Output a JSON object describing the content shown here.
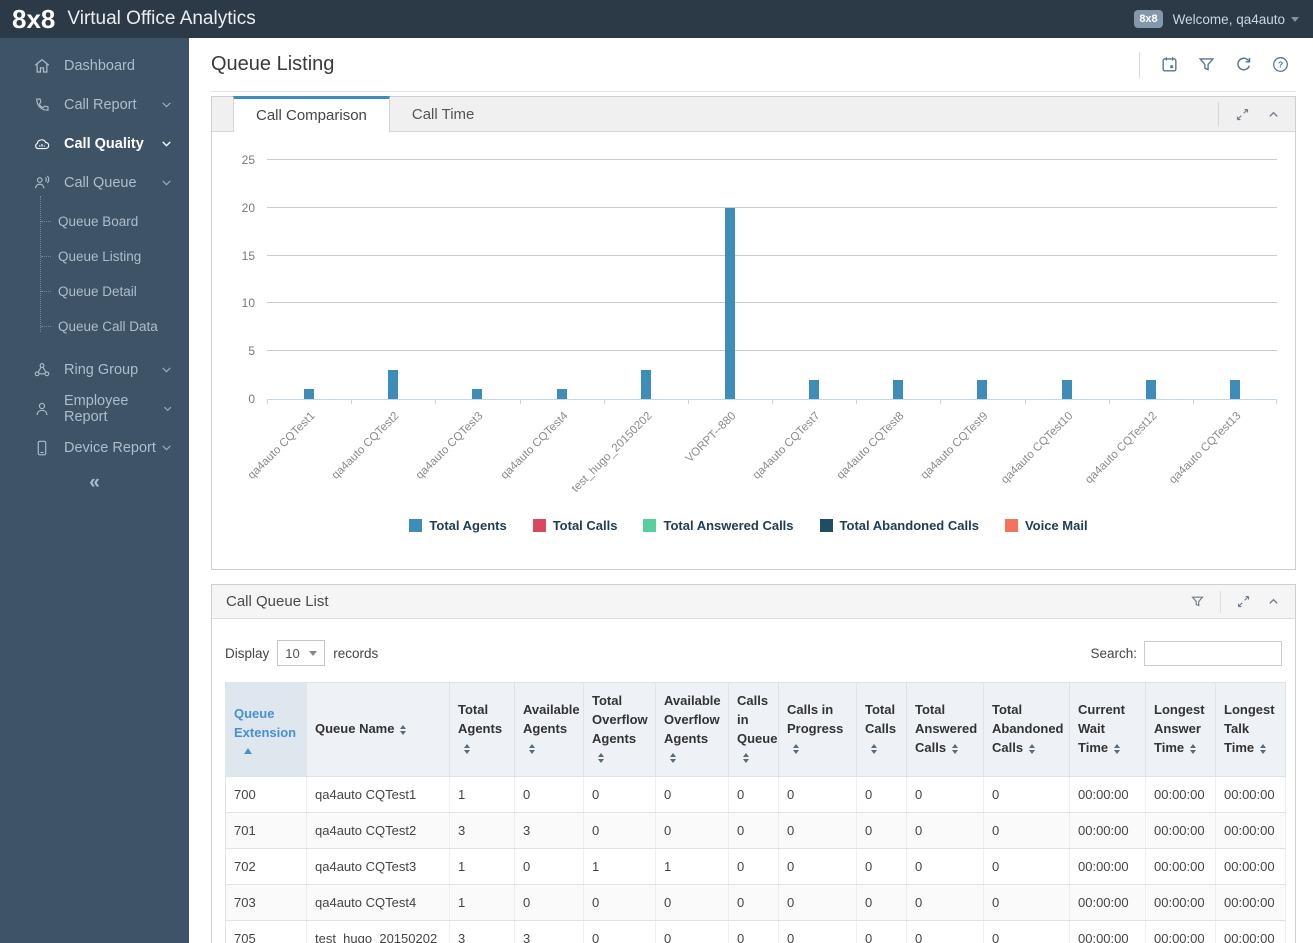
{
  "header": {
    "logo": "8x8",
    "app_title": "Virtual Office Analytics",
    "user_badge": "8x8",
    "welcome": "Welcome, qa4auto"
  },
  "sidebar": {
    "items": [
      {
        "label": "Dashboard",
        "icon": "home-icon"
      },
      {
        "label": "Call Report",
        "icon": "phone-icon",
        "expandable": true
      },
      {
        "label": "Call Quality",
        "icon": "cloud-icon",
        "expandable": true,
        "active": true
      },
      {
        "label": "Call Queue",
        "icon": "call-queue-icon",
        "expandable": true,
        "expanded": true,
        "children": [
          "Queue Board",
          "Queue Listing",
          "Queue Detail",
          "Queue Call Data"
        ]
      },
      {
        "label": "Ring Group",
        "icon": "ring-group-icon",
        "expandable": true
      },
      {
        "label": "Employee Report",
        "icon": "person-icon",
        "expandable": true
      },
      {
        "label": "Device Report",
        "icon": "device-icon",
        "expandable": true
      }
    ],
    "collapse_icon": "collapse-double-chevron"
  },
  "page": {
    "title": "Queue Listing",
    "actions": [
      "calendar-icon",
      "filter-icon",
      "refresh-icon",
      "help-icon"
    ]
  },
  "chart_panel": {
    "tabs": [
      {
        "label": "Call Comparison",
        "active": true
      },
      {
        "label": "Call Time",
        "active": false
      }
    ]
  },
  "chart_data": {
    "type": "bar",
    "title": "",
    "xlabel": "",
    "ylabel": "",
    "ylim": [
      0,
      25
    ],
    "yticks": [
      0,
      5,
      10,
      15,
      20,
      25
    ],
    "grid": true,
    "legend_position": "bottom",
    "categories": [
      "qa4auto CQTest1",
      "qa4auto CQTest2",
      "qa4auto CQTest3",
      "qa4auto CQTest4",
      "test_hugo_20150202",
      "VORPT--880",
      "qa4auto CQTest7",
      "qa4auto CQTest8",
      "qa4auto CQTest9",
      "qa4auto CQTest10",
      "qa4auto CQTest12",
      "qa4auto CQTest13"
    ],
    "series": [
      {
        "name": "Total Agents",
        "color": "#3e8cb8",
        "values": [
          1,
          3,
          1,
          1,
          3,
          20,
          2,
          2,
          2,
          2,
          2,
          2
        ]
      },
      {
        "name": "Total Calls",
        "color": "#d8495f",
        "values": [
          0,
          0,
          0,
          0,
          0,
          0,
          0,
          0,
          0,
          0,
          0,
          0
        ]
      },
      {
        "name": "Total Answered Calls",
        "color": "#57d0a0",
        "values": [
          0,
          0,
          0,
          0,
          0,
          0,
          0,
          0,
          0,
          0,
          0,
          0
        ]
      },
      {
        "name": "Total Abandoned Calls",
        "color": "#1f4e63",
        "values": [
          0,
          0,
          0,
          0,
          0,
          0,
          0,
          0,
          0,
          0,
          0,
          0
        ]
      },
      {
        "name": "Voice Mail",
        "color": "#f4735c",
        "values": [
          0,
          0,
          0,
          0,
          0,
          0,
          0,
          0,
          0,
          0,
          0,
          0
        ]
      }
    ]
  },
  "list_panel": {
    "title": "Call Queue List",
    "display_label": "Display",
    "page_size": "10",
    "records_label": "records",
    "search_label": "Search:"
  },
  "table": {
    "sorted_column": "Queue Extension",
    "sort_direction": "asc",
    "columns": [
      "Queue Extension",
      "Queue Name",
      "Total Agents",
      "Available Agents",
      "Total Overflow Agents",
      "Available Overflow Agents",
      "Calls in Queue",
      "Calls in Progress",
      "Total Calls",
      "Total Answered Calls",
      "Total Abandoned Calls",
      "Current Wait Time",
      "Longest Answer Time",
      "Longest Talk Time"
    ],
    "rows": [
      [
        "700",
        "qa4auto CQTest1",
        "1",
        "0",
        "0",
        "0",
        "0",
        "0",
        "0",
        "0",
        "0",
        "00:00:00",
        "00:00:00",
        "00:00:00"
      ],
      [
        "701",
        "qa4auto CQTest2",
        "3",
        "3",
        "0",
        "0",
        "0",
        "0",
        "0",
        "0",
        "0",
        "00:00:00",
        "00:00:00",
        "00:00:00"
      ],
      [
        "702",
        "qa4auto CQTest3",
        "1",
        "0",
        "1",
        "1",
        "0",
        "0",
        "0",
        "0",
        "0",
        "00:00:00",
        "00:00:00",
        "00:00:00"
      ],
      [
        "703",
        "qa4auto CQTest4",
        "1",
        "0",
        "0",
        "0",
        "0",
        "0",
        "0",
        "0",
        "0",
        "00:00:00",
        "00:00:00",
        "00:00:00"
      ],
      [
        "705",
        "test_hugo_20150202",
        "3",
        "3",
        "0",
        "0",
        "0",
        "0",
        "0",
        "0",
        "0",
        "00:00:00",
        "00:00:00",
        "00:00:00"
      ]
    ]
  }
}
